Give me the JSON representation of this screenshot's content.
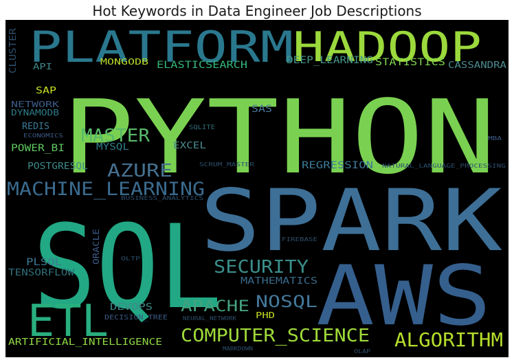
{
  "figure": {
    "title": "Hot Keywords in Data Engineer Job Descriptions"
  },
  "words": [
    {
      "text": "PYTHON",
      "color": "#7ad151"
    },
    {
      "text": "SPARK",
      "color": "#3e6f96"
    },
    {
      "text": "SQL",
      "color": "#22a884"
    },
    {
      "text": "AWS",
      "color": "#355f8d"
    },
    {
      "text": "PLATFORM",
      "color": "#2a788e"
    },
    {
      "text": "HADOOP",
      "color": "#9bd93c"
    },
    {
      "text": "ETL",
      "color": "#29af7f"
    },
    {
      "text": "MACHINE_LEARNING",
      "color": "#3b6a8d"
    },
    {
      "text": "COMPUTER_SCIENCE",
      "color": "#9fda3a"
    },
    {
      "text": "ALGORITHM",
      "color": "#b5de2b"
    },
    {
      "text": "MASTER",
      "color": "#58b96a"
    },
    {
      "text": "AZURE",
      "color": "#46708f"
    },
    {
      "text": "SECURITY",
      "color": "#3a8f8a"
    },
    {
      "text": "APACHE",
      "color": "#45a27f"
    },
    {
      "text": "NOSQL",
      "color": "#43789a"
    },
    {
      "text": "ELASTICSEARCH",
      "color": "#35b779"
    },
    {
      "text": "STATISTICS",
      "color": "#7ed34f"
    },
    {
      "text": "CASSANDRA",
      "color": "#4c8b8f"
    },
    {
      "text": "DEEP_LEARNING",
      "color": "#45978a"
    },
    {
      "text": "MONGODB",
      "color": "#b8d92a"
    },
    {
      "text": "API",
      "color": "#3f8a8a"
    },
    {
      "text": "SAP",
      "color": "#c8df23"
    },
    {
      "text": "NETWORK",
      "color": "#3c5a86"
    },
    {
      "text": "DYNAMODB",
      "color": "#2e7a86"
    },
    {
      "text": "CLUSTER",
      "color": "#2e4f6c"
    },
    {
      "text": "REDIS",
      "color": "#3d7a96"
    },
    {
      "text": "ECONOMICS",
      "color": "#3c5a86"
    },
    {
      "text": "POWER_BI",
      "color": "#5ec962"
    },
    {
      "text": "MYSQL",
      "color": "#2f7d8a"
    },
    {
      "text": "EXCEL",
      "color": "#4c8b8f"
    },
    {
      "text": "SAS",
      "color": "#4a7a98"
    },
    {
      "text": "SQLITE",
      "color": "#2f6f7a"
    },
    {
      "text": "MBA",
      "color": "#3c5a86"
    },
    {
      "text": "POSTGRESQL",
      "color": "#3f8a8a"
    },
    {
      "text": "SCRUM_MASTER",
      "color": "#2e4f6c"
    },
    {
      "text": "REGRESSION",
      "color": "#3d7a96"
    },
    {
      "text": "NATURAL_LANGUAGE_PROCESSING",
      "color": "#2e4f6c"
    },
    {
      "text": "BUSINESS_ANALYTICS",
      "color": "#2e4f6c"
    },
    {
      "text": "ORACLE",
      "color": "#3c5a86"
    },
    {
      "text": "FIREBASE",
      "color": "#2e4f6c"
    },
    {
      "text": "OLTP",
      "color": "#2e4f6c"
    },
    {
      "text": "PLSQL",
      "color": "#3d7a96"
    },
    {
      "text": "TENSORFLOW",
      "color": "#2f6f7a"
    },
    {
      "text": "MATHEMATICS",
      "color": "#3a6a8a"
    },
    {
      "text": "DEVOPS",
      "color": "#3f8a8a"
    },
    {
      "text": "DECISION_TREE",
      "color": "#3c5a86"
    },
    {
      "text": "NEURAL_NETWORK",
      "color": "#2e4f6c"
    },
    {
      "text": "PHD",
      "color": "#c8df23"
    },
    {
      "text": "ARTIFICIAL_INTELLIGENCE",
      "color": "#8fd744"
    },
    {
      "text": "MARKDOWN",
      "color": "#2e4f6c"
    },
    {
      "text": "OLAP",
      "color": "#2e4f6c"
    }
  ]
}
